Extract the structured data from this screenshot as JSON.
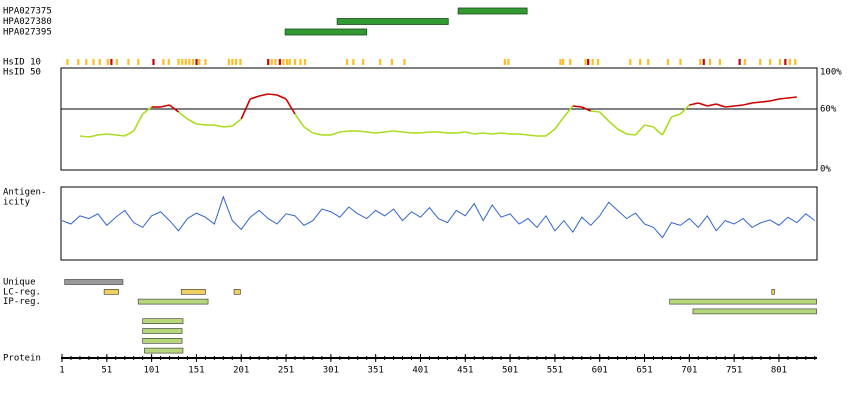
{
  "chart_data": {
    "type": "protein-view",
    "xlim": [
      1,
      843
    ],
    "xticks": [
      1,
      51,
      101,
      151,
      201,
      251,
      301,
      351,
      401,
      451,
      501,
      551,
      601,
      651,
      701,
      751,
      801
    ],
    "axis_label": "Protein",
    "antibodies": [
      {
        "name": "HPA027375",
        "color": "#339933",
        "range": [
          443,
          520
        ]
      },
      {
        "name": "HPA027380",
        "color": "#339933",
        "range": [
          308,
          432
        ]
      },
      {
        "name": "HPA027395",
        "color": "#339933",
        "range": [
          250,
          341
        ]
      }
    ],
    "hsid10": {
      "label": "HsID 10",
      "marks": [
        {
          "color": "#ffbb22",
          "positions": [
            7,
            19,
            28,
            36,
            43,
            52,
            62,
            75,
            86,
            114,
            120,
            131,
            135,
            139,
            143,
            147,
            154,
            161,
            187,
            191,
            195,
            200,
            235,
            239,
            248,
            252,
            255,
            261,
            267,
            272,
            319,
            326,
            337,
            356,
            369,
            383,
            495,
            499,
            557,
            560,
            568,
            585,
            593,
            599,
            635,
            646,
            655,
            677,
            691,
            713,
            724,
            735,
            763,
            780,
            791,
            802,
            813,
            819
          ]
        },
        {
          "color": "#cc0000",
          "positions": [
            56,
            103,
            151,
            231,
            244,
            588,
            717,
            757,
            808
          ]
        }
      ]
    },
    "hsid50": {
      "label": "HsID 50",
      "ylim": [
        0,
        100
      ],
      "yticks": [
        {
          "value": 0,
          "label": "0%"
        },
        {
          "value": 60,
          "label": "60%"
        },
        {
          "value": 100,
          "label": "100%"
        }
      ],
      "high_color": "#cc0000",
      "low_color": "#aadd22",
      "x": [
        21,
        31,
        41,
        51,
        61,
        71,
        81,
        91,
        101,
        111,
        121,
        131,
        141,
        151,
        161,
        171,
        181,
        191,
        201,
        211,
        221,
        231,
        241,
        251,
        261,
        271,
        281,
        291,
        301,
        311,
        321,
        331,
        341,
        351,
        361,
        371,
        381,
        391,
        401,
        411,
        421,
        431,
        441,
        451,
        461,
        471,
        481,
        491,
        501,
        511,
        521,
        531,
        541,
        551,
        561,
        571,
        581,
        591,
        601,
        611,
        621,
        631,
        641,
        651,
        661,
        671,
        681,
        691,
        701,
        711,
        721,
        731,
        741,
        751,
        761,
        771,
        781,
        791,
        801,
        811,
        821
      ],
      "values": [
        33,
        32,
        34,
        35,
        34,
        33,
        38,
        55,
        62,
        62,
        64,
        57,
        50,
        45,
        44,
        44,
        42,
        43,
        50,
        70,
        73,
        75,
        74,
        70,
        55,
        42,
        36,
        34,
        34,
        37,
        38,
        38,
        37,
        36,
        37,
        38,
        37,
        36,
        36,
        37,
        37,
        36,
        36,
        37,
        35,
        36,
        35,
        36,
        35,
        35,
        34,
        33,
        33,
        40,
        52,
        63,
        62,
        58,
        57,
        48,
        40,
        35,
        34,
        44,
        42,
        34,
        52,
        55,
        64,
        66,
        63,
        65,
        62,
        63,
        64,
        66,
        67,
        68,
        70,
        71,
        72
      ]
    },
    "antigenicity": {
      "label": [
        "Antigen-",
        "icity"
      ],
      "color": "#3366cc",
      "ylim": [
        0,
        100
      ],
      "x": [
        1,
        11,
        21,
        31,
        41,
        51,
        61,
        71,
        81,
        91,
        101,
        111,
        121,
        131,
        141,
        151,
        161,
        171,
        181,
        191,
        201,
        211,
        221,
        231,
        241,
        251,
        261,
        271,
        281,
        291,
        301,
        311,
        321,
        331,
        341,
        351,
        361,
        371,
        381,
        391,
        401,
        411,
        421,
        431,
        441,
        451,
        461,
        471,
        481,
        491,
        501,
        511,
        521,
        531,
        541,
        551,
        561,
        571,
        581,
        591,
        601,
        611,
        621,
        631,
        641,
        651,
        661,
        671,
        681,
        691,
        701,
        711,
        721,
        731,
        741,
        751,
        761,
        771,
        781,
        791,
        801,
        811,
        821,
        831,
        841
      ],
      "values": [
        55,
        50,
        62,
        58,
        65,
        48,
        60,
        70,
        52,
        45,
        62,
        68,
        55,
        40,
        58,
        66,
        60,
        50,
        90,
        55,
        42,
        60,
        70,
        58,
        50,
        65,
        62,
        48,
        55,
        72,
        68,
        60,
        75,
        65,
        58,
        70,
        62,
        72,
        55,
        68,
        60,
        74,
        58,
        52,
        70,
        62,
        80,
        55,
        78,
        60,
        65,
        50,
        58,
        45,
        62,
        40,
        55,
        38,
        60,
        48,
        62,
        82,
        70,
        58,
        66,
        50,
        45,
        30,
        52,
        48,
        58,
        45,
        62,
        40,
        55,
        50,
        58,
        45,
        52,
        56,
        48,
        60,
        52,
        65,
        55
      ]
    },
    "features": [
      {
        "name": "Unique",
        "color": "#999999",
        "rows": [
          [
            [
              4,
              69
            ]
          ]
        ]
      },
      {
        "name": "LC-reg.",
        "color": "#f0d060",
        "rows": [
          [
            [
              48,
              64
            ],
            [
              134,
              161
            ],
            [
              193,
              200
            ],
            [
              793,
              796
            ]
          ]
        ]
      },
      {
        "name": "IP-reg.",
        "color": "#b5d67a",
        "rows": [
          [
            [
              86,
              164
            ],
            [
              679,
              843
            ]
          ],
          [
            [
              705,
              843
            ]
          ],
          [
            [
              91,
              136
            ]
          ],
          [
            [
              91,
              135
            ]
          ],
          [
            [
              91,
              135
            ]
          ],
          [
            [
              93,
              136
            ]
          ]
        ]
      }
    ]
  }
}
